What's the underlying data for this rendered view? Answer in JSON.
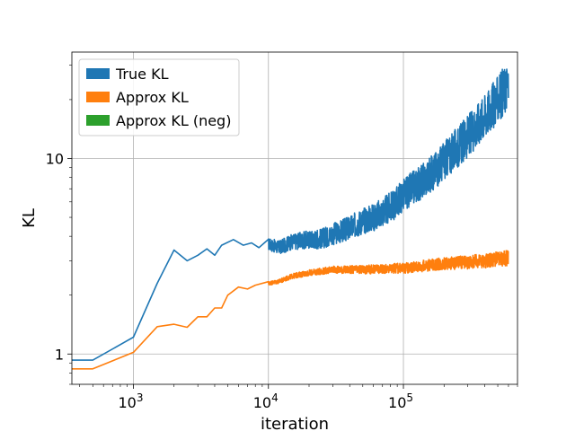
{
  "chart_data": {
    "type": "line",
    "xlabel": "iteration",
    "ylabel": "KL",
    "xscale": "log",
    "yscale": "log",
    "xlim": [
      350,
      700000
    ],
    "ylim": [
      0.7,
      35
    ],
    "grid": true,
    "legend_position": "top-left",
    "x_ticks": [
      {
        "value": 1000,
        "base": "10",
        "exp": "3"
      },
      {
        "value": 10000,
        "base": "10",
        "exp": "4"
      },
      {
        "value": 100000,
        "base": "10",
        "exp": "5"
      }
    ],
    "y_ticks": [
      {
        "value": 1,
        "label": "1"
      },
      {
        "value": 10,
        "label": "10"
      }
    ],
    "series": [
      {
        "name": "True KL",
        "color": "#1f77b4",
        "x": [
          350,
          500,
          1000,
          1500,
          2000,
          2500,
          3000,
          3500,
          4000,
          4500,
          5500,
          6500,
          7500,
          8500,
          10000,
          12000,
          15000,
          20000,
          25000,
          30000,
          40000,
          50000,
          60000,
          80000,
          100000,
          150000,
          200000,
          300000,
          400000,
          500000,
          600000
        ],
        "y": [
          0.93,
          0.93,
          1.22,
          2.3,
          3.4,
          3.0,
          3.2,
          3.45,
          3.2,
          3.6,
          3.85,
          3.6,
          3.7,
          3.5,
          3.65,
          3.5,
          3.75,
          3.85,
          3.9,
          4.1,
          4.4,
          4.8,
          5.0,
          5.6,
          6.5,
          8.0,
          9.7,
          13.0,
          16.5,
          20.0,
          24.0
        ],
        "noise": 0.25
      },
      {
        "name": "Approx KL",
        "color": "#ff7f0e",
        "x": [
          350,
          500,
          1000,
          1500,
          2000,
          2500,
          3000,
          3500,
          4000,
          4500,
          5000,
          6000,
          7000,
          8000,
          10000,
          12000,
          15000,
          20000,
          30000,
          50000,
          100000,
          200000,
          300000,
          400000,
          500000,
          600000
        ],
        "y": [
          0.84,
          0.84,
          1.02,
          1.38,
          1.42,
          1.37,
          1.55,
          1.55,
          1.72,
          1.72,
          2.0,
          2.2,
          2.15,
          2.25,
          2.3,
          2.35,
          2.5,
          2.6,
          2.7,
          2.7,
          2.75,
          2.9,
          2.95,
          3.0,
          3.05,
          3.1
        ],
        "noise": 0.08
      },
      {
        "name": "Approx KL (neg)",
        "color": "#2ca02c",
        "x": [],
        "y": [],
        "noise": 0
      }
    ]
  }
}
